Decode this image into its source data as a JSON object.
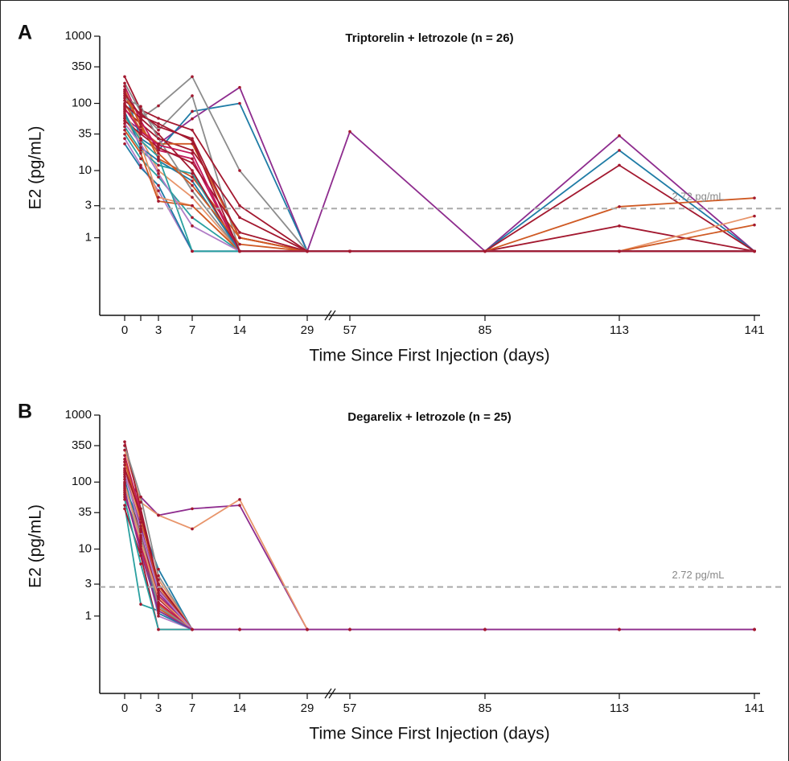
{
  "chart_data": [
    {
      "type": "line",
      "panel_label": "A",
      "title": "Triptorelin + letrozole (n = 26)",
      "xlabel": "Time Since First Injection (days)",
      "ylabel": "E2 (pg/mL)",
      "categories": [
        "0",
        null,
        "3",
        "7",
        "14",
        "29",
        "57",
        "85",
        "113",
        "141"
      ],
      "log_y": true,
      "ylim": [
        0.07,
        1000
      ],
      "yticks": [
        1,
        3,
        10,
        35,
        100,
        350,
        1000
      ],
      "reference": {
        "value": 2.72,
        "label": "2.72 pg/mL"
      },
      "marker_color": "#a3182f",
      "series": [
        {
          "color": "#8e2c8e",
          "values": [
            60,
            40,
            25,
            59,
            173,
            0.63,
            38,
            0.63,
            33,
            0.63
          ]
        },
        {
          "color": "#1f7ca6",
          "values": [
            150,
            30,
            20,
            76,
            100,
            0.63,
            0.63,
            0.63,
            20,
            0.63
          ]
        },
        {
          "color": "#8c8c8c",
          "values": [
            90,
            60,
            92,
            250,
            10,
            0.63,
            0.63,
            0.63,
            0.63,
            0.63
          ]
        },
        {
          "color": "#8c8c8c",
          "values": [
            200,
            75,
            40,
            130,
            0.63,
            0.63,
            0.63,
            0.63,
            0.63,
            0.63
          ]
        },
        {
          "color": "#a3182f",
          "values": [
            110,
            70,
            45,
            30,
            1,
            0.63,
            0.63,
            0.63,
            12,
            0.63
          ]
        },
        {
          "color": "#a3182f",
          "values": [
            80,
            50,
            30,
            20,
            2,
            0.63,
            0.63,
            0.63,
            1.5,
            0.63
          ]
        },
        {
          "color": "#cf5a24",
          "values": [
            100,
            40,
            25,
            25,
            1,
            0.63,
            0.63,
            0.63,
            2.9,
            3.9
          ]
        },
        {
          "color": "#e8956b",
          "values": [
            70,
            30,
            10,
            4,
            0.63,
            0.63,
            0.63,
            0.63,
            0.63,
            2.1
          ]
        },
        {
          "color": "#cf5a24",
          "values": [
            130,
            50,
            15,
            8,
            1,
            0.63,
            0.63,
            0.63,
            0.63,
            1.55
          ]
        },
        {
          "color": "#2aa0a0",
          "values": [
            45,
            20,
            12,
            9,
            0.63,
            0.63,
            0.63,
            0.63,
            0.63,
            0.63
          ]
        },
        {
          "color": "#2aa0a0",
          "values": [
            35,
            15,
            8,
            2,
            0.63,
            0.63,
            0.63,
            0.63,
            0.63,
            0.63
          ]
        },
        {
          "color": "#b07cc6",
          "values": [
            30,
            12,
            5,
            0.63,
            0.63,
            0.63,
            0.63,
            0.63,
            0.63,
            0.63
          ]
        },
        {
          "color": "#1f7ca6",
          "values": [
            25,
            11,
            6,
            0.63,
            0.63,
            0.63,
            0.63,
            0.63,
            0.63,
            0.63
          ]
        },
        {
          "color": "#a3182f",
          "values": [
            250,
            80,
            60,
            40,
            3,
            0.63,
            0.63,
            0.63,
            0.63,
            0.63
          ]
        },
        {
          "color": "#c2185b",
          "values": [
            180,
            55,
            20,
            15,
            0.63,
            0.63,
            0.63,
            0.63,
            0.63,
            0.63
          ]
        },
        {
          "color": "#e8956b",
          "values": [
            60,
            25,
            4,
            3,
            0.63,
            0.63,
            0.63,
            0.63,
            0.63,
            0.63
          ]
        },
        {
          "color": "#cf5a24",
          "values": [
            40,
            18,
            3.5,
            3,
            0.63,
            0.63,
            0.63,
            0.63,
            0.63,
            0.63
          ]
        },
        {
          "color": "#a3182f",
          "values": [
            95,
            60,
            35,
            10,
            0.63,
            0.63,
            0.63,
            0.63,
            0.63,
            0.63
          ]
        },
        {
          "color": "#8c8c8c",
          "values": [
            120,
            90,
            30,
            5,
            0.63,
            0.63,
            0.63,
            0.63,
            0.63,
            0.63
          ]
        },
        {
          "color": "#1f7ca6",
          "values": [
            75,
            22,
            14,
            7,
            0.63,
            0.63,
            0.63,
            0.63,
            0.63,
            0.63
          ]
        },
        {
          "color": "#a3182f",
          "values": [
            55,
            35,
            22,
            13,
            1.2,
            0.63,
            0.63,
            0.63,
            0.63,
            0.63
          ]
        },
        {
          "color": "#cf5a24",
          "values": [
            160,
            45,
            18,
            6,
            0.8,
            0.63,
            0.63,
            0.63,
            0.63,
            0.63
          ]
        },
        {
          "color": "#b07cc6",
          "values": [
            50,
            25,
            9,
            1.5,
            0.63,
            0.63,
            0.63,
            0.63,
            0.63,
            0.63
          ]
        },
        {
          "color": "#2aa0a0",
          "values": [
            65,
            28,
            16,
            0.63,
            0.63,
            0.63,
            0.63,
            0.63,
            0.63,
            0.63
          ]
        },
        {
          "color": "#c2185b",
          "values": [
            85,
            38,
            24,
            18,
            0.63,
            0.63,
            0.63,
            0.63,
            0.63,
            0.63
          ]
        },
        {
          "color": "#a3182f",
          "values": [
            140,
            65,
            50,
            28,
            0.63,
            0.63,
            0.63,
            0.63,
            0.63,
            0.63
          ]
        }
      ]
    },
    {
      "type": "line",
      "panel_label": "B",
      "title": "Degarelix + letrozole (n = 25)",
      "xlabel": "Time Since First Injection (days)",
      "ylabel": "E2 (pg/mL)",
      "categories": [
        "0",
        null,
        "3",
        "7",
        "14",
        "29",
        "57",
        "85",
        "113",
        "141"
      ],
      "log_y": true,
      "ylim": [
        0.07,
        1000
      ],
      "yticks": [
        1,
        3,
        10,
        35,
        100,
        350,
        1000
      ],
      "reference": {
        "value": 2.72,
        "label": "2.72 pg/mL"
      },
      "marker_color": "#a3182f",
      "series": [
        {
          "color": "#8e2c8e",
          "values": [
            120,
            60,
            32,
            40,
            45,
            0.63,
            0.63,
            0.63,
            0.63,
            0.63
          ]
        },
        {
          "color": "#e8956b",
          "values": [
            300,
            50,
            32,
            20,
            55,
            0.63,
            0.63,
            0.63,
            0.63,
            0.63
          ]
        },
        {
          "color": "#1f7ca6",
          "values": [
            80,
            25,
            5,
            0.63,
            0.63,
            0.63,
            0.63,
            0.63,
            0.63,
            0.63
          ]
        },
        {
          "color": "#2aa0a0",
          "values": [
            60,
            15,
            2,
            0.63,
            0.63,
            0.63,
            0.63,
            0.63,
            0.63,
            0.63
          ]
        },
        {
          "color": "#2aa0a0",
          "values": [
            45,
            1.5,
            1.2,
            0.63,
            0.63,
            0.63,
            0.63,
            0.63,
            0.63,
            0.63
          ]
        },
        {
          "color": "#a3182f",
          "values": [
            400,
            40,
            3,
            0.63,
            0.63,
            0.63,
            0.63,
            0.63,
            0.63,
            0.63
          ]
        },
        {
          "color": "#a3182f",
          "values": [
            200,
            30,
            2.5,
            0.63,
            0.63,
            0.63,
            0.63,
            0.63,
            0.63,
            0.63
          ]
        },
        {
          "color": "#cf5a24",
          "values": [
            150,
            20,
            1.5,
            0.63,
            0.63,
            0.63,
            0.63,
            0.63,
            0.63,
            0.63
          ]
        },
        {
          "color": "#c2185b",
          "values": [
            250,
            35,
            2,
            0.63,
            0.63,
            0.63,
            0.63,
            0.63,
            0.63,
            0.63
          ]
        },
        {
          "color": "#8c8c8c",
          "values": [
            350,
            60,
            4,
            0.63,
            0.63,
            0.63,
            0.63,
            0.63,
            0.63,
            0.63
          ]
        },
        {
          "color": "#b07cc6",
          "values": [
            100,
            12,
            1,
            0.63,
            0.63,
            0.63,
            0.63,
            0.63,
            0.63,
            0.63
          ]
        },
        {
          "color": "#a3182f",
          "values": [
            90,
            18,
            1.8,
            0.63,
            0.63,
            0.63,
            0.63,
            0.63,
            0.63,
            0.63
          ]
        },
        {
          "color": "#cf5a24",
          "values": [
            70,
            10,
            1.3,
            0.63,
            0.63,
            0.63,
            0.63,
            0.63,
            0.63,
            0.63
          ]
        },
        {
          "color": "#e8956b",
          "values": [
            180,
            25,
            3.5,
            0.63,
            0.63,
            0.63,
            0.63,
            0.63,
            0.63,
            0.63
          ]
        },
        {
          "color": "#8e2c8e",
          "values": [
            130,
            22,
            2.2,
            0.63,
            0.63,
            0.63,
            0.63,
            0.63,
            0.63,
            0.63
          ]
        },
        {
          "color": "#1f7ca6",
          "values": [
            110,
            14,
            1.1,
            0.63,
            0.63,
            0.63,
            0.63,
            0.63,
            0.63,
            0.63
          ]
        },
        {
          "color": "#a3182f",
          "values": [
            40,
            8,
            0.63,
            0.63,
            0.63,
            0.63,
            0.63,
            0.63,
            0.63,
            0.63
          ]
        },
        {
          "color": "#c2185b",
          "values": [
            65,
            11,
            1.6,
            0.63,
            0.63,
            0.63,
            0.63,
            0.63,
            0.63,
            0.63
          ]
        },
        {
          "color": "#cf5a24",
          "values": [
            220,
            28,
            2.8,
            0.63,
            0.63,
            0.63,
            0.63,
            0.63,
            0.63,
            0.63
          ]
        },
        {
          "color": "#8c8c8c",
          "values": [
            85,
            16,
            1.4,
            0.63,
            0.63,
            0.63,
            0.63,
            0.63,
            0.63,
            0.63
          ]
        },
        {
          "color": "#2aa0a0",
          "values": [
            55,
            6,
            0.63,
            0.63,
            0.63,
            0.63,
            0.63,
            0.63,
            0.63,
            0.63
          ]
        },
        {
          "color": "#a3182f",
          "values": [
            160,
            33,
            3,
            0.63,
            0.63,
            0.63,
            0.63,
            0.63,
            0.63,
            0.63
          ]
        },
        {
          "color": "#e8956b",
          "values": [
            95,
            13,
            1.9,
            0.63,
            0.63,
            0.63,
            0.63,
            0.63,
            0.63,
            0.63
          ]
        },
        {
          "color": "#b07cc6",
          "values": [
            140,
            19,
            2.4,
            0.63,
            0.63,
            0.63,
            0.63,
            0.63,
            0.63,
            0.63
          ]
        },
        {
          "color": "#8e2c8e",
          "values": [
            75,
            9,
            1.2,
            0.63,
            0.63,
            0.63,
            0.63,
            0.63,
            0.63,
            0.63
          ]
        }
      ]
    }
  ]
}
